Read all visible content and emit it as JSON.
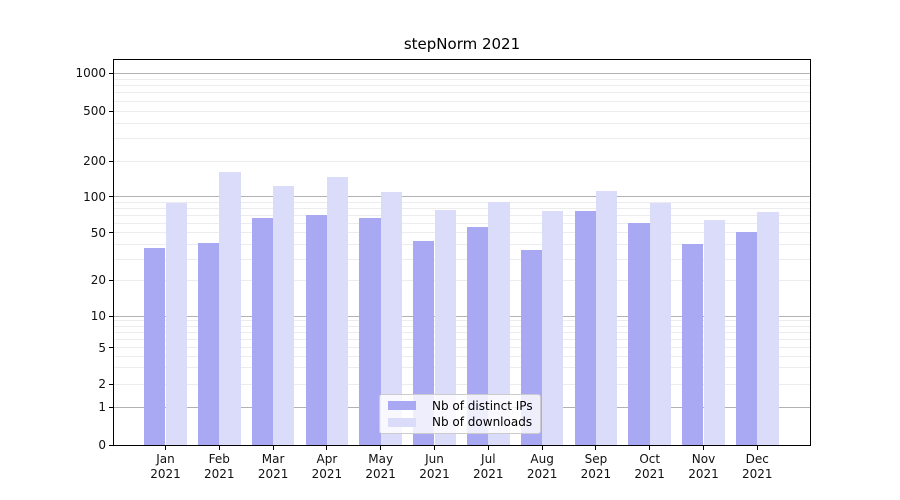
{
  "figure": {
    "title": "stepNorm 2021"
  },
  "chart_data": {
    "type": "bar",
    "title": "stepNorm 2021",
    "categories": [
      "Jan",
      "Feb",
      "Mar",
      "Apr",
      "May",
      "Jun",
      "Jul",
      "Aug",
      "Sep",
      "Oct",
      "Nov",
      "Dec"
    ],
    "year_label": "2021",
    "series": [
      {
        "name": "Nb of distinct IPs",
        "color": "#a8a8f3",
        "values": [
          37,
          41,
          67,
          70,
          66,
          43,
          56,
          36,
          76,
          60,
          40,
          51
        ]
      },
      {
        "name": "Nb of downloads",
        "color": "#dbdbfa",
        "values": [
          88,
          163,
          122,
          147,
          110,
          77,
          90,
          76,
          111,
          89,
          64,
          75
        ]
      }
    ],
    "xlabel": "",
    "ylabel": "",
    "yscale": "log-like",
    "yticks": [
      0,
      1,
      2,
      5,
      10,
      20,
      50,
      100,
      200,
      500,
      1000
    ],
    "ylim": [
      0,
      1400
    ],
    "grid": "horizontal major and minor lines",
    "legend_position": "inside bottom-center"
  },
  "colors": {
    "distinct_ips_bar": "#a8a8f3",
    "downloads_bar": "#dbdbfa",
    "major_grid": "#b2b2b2",
    "minor_grid": "#ececec",
    "axis": "#000000",
    "background": "#ffffff"
  }
}
